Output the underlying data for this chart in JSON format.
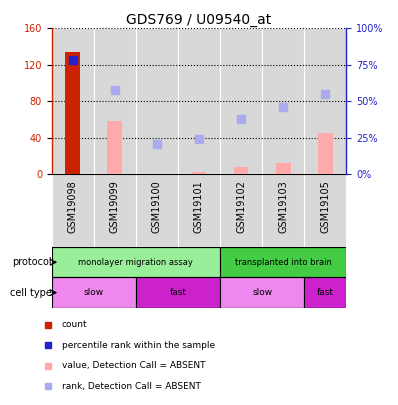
{
  "title": "GDS769 / U09540_at",
  "samples": [
    "GSM19098",
    "GSM19099",
    "GSM19100",
    "GSM19101",
    "GSM19102",
    "GSM19103",
    "GSM19105"
  ],
  "count_values": [
    134,
    0,
    0,
    0,
    0,
    0,
    0
  ],
  "count_color": "#cc2200",
  "value_absent": [
    0,
    58,
    0,
    2,
    8,
    12,
    45
  ],
  "value_absent_color": "#ffaaaa",
  "rank_present": [
    78,
    0,
    0,
    0,
    0,
    0,
    0
  ],
  "rank_present_color": "#2222cc",
  "rank_absent": [
    0,
    58,
    21,
    24,
    38,
    46,
    55
  ],
  "rank_absent_color": "#aaaaee",
  "ylim_left": [
    0,
    160
  ],
  "ylim_right": [
    0,
    100
  ],
  "yticks_left": [
    0,
    40,
    80,
    120,
    160
  ],
  "yticks_right": [
    0,
    25,
    50,
    75,
    100
  ],
  "ytick_labels_right": [
    "0%",
    "25%",
    "50%",
    "75%",
    "100%"
  ],
  "protocol_groups": [
    {
      "text": "monolayer migration assay",
      "cols": [
        0,
        1,
        2,
        3
      ],
      "color": "#99ee99"
    },
    {
      "text": "transplanted into brain",
      "cols": [
        4,
        5,
        6
      ],
      "color": "#44cc44"
    }
  ],
  "cell_type_groups": [
    {
      "text": "slow",
      "cols": [
        0,
        1
      ],
      "color": "#ee88ee"
    },
    {
      "text": "fast",
      "cols": [
        2,
        3
      ],
      "color": "#cc22cc"
    },
    {
      "text": "slow",
      "cols": [
        4,
        5
      ],
      "color": "#ee88ee"
    },
    {
      "text": "fast",
      "cols": [
        6
      ],
      "color": "#cc22cc"
    }
  ],
  "legend_items": [
    {
      "color": "#cc2200",
      "label": "count"
    },
    {
      "color": "#2222cc",
      "label": "percentile rank within the sample"
    },
    {
      "color": "#ffaaaa",
      "label": "value, Detection Call = ABSENT"
    },
    {
      "color": "#aaaaee",
      "label": "rank, Detection Call = ABSENT"
    }
  ],
  "bar_width": 0.35,
  "marker_size": 6,
  "col_bg_color": "#d8d8d8",
  "col_edge_color": "#ffffff",
  "grid_linestyle": ":",
  "grid_linewidth": 0.8,
  "title_fontsize": 10,
  "tick_fontsize": 7,
  "label_fontsize": 7,
  "legend_fontsize": 6.5,
  "row_label_fontsize": 7
}
